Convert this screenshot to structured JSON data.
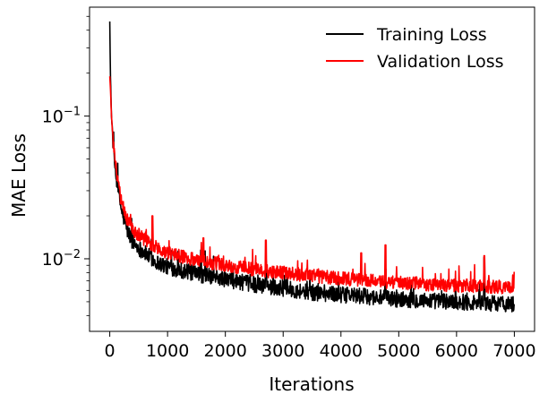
{
  "chart_data": {
    "type": "line",
    "title": "",
    "xlabel": "Iterations",
    "ylabel": "MAE Loss",
    "xlim": [
      -350,
      7350
    ],
    "ylim": [
      0.0031,
      0.58
    ],
    "yscale": "log",
    "grid": false,
    "legend_position": "top-right",
    "x_ticks": [
      0,
      1000,
      2000,
      3000,
      4000,
      5000,
      6000,
      7000
    ],
    "x_tick_labels": [
      "0",
      "1000",
      "2000",
      "3000",
      "4000",
      "5000",
      "6000",
      "7000"
    ],
    "y_major_ticks": [
      0.01,
      0.1
    ],
    "y_tick_labels": [
      {
        "value": 0.01,
        "base": "10",
        "exp": "−2"
      },
      {
        "value": 0.1,
        "base": "10",
        "exp": "−1"
      }
    ],
    "x_max": 7000,
    "series": [
      {
        "name": "Training Loss",
        "color": "#000000",
        "x": [
          0,
          10,
          30,
          60,
          100,
          150,
          200,
          300,
          400,
          600,
          800,
          1000,
          1500,
          2000,
          2500,
          3000,
          3500,
          4000,
          4500,
          5000,
          5500,
          6000,
          6500,
          7000
        ],
        "values": [
          0.46,
          0.2,
          0.1,
          0.06,
          0.04,
          0.03,
          0.022,
          0.016,
          0.013,
          0.011,
          0.0095,
          0.0088,
          0.0078,
          0.0072,
          0.0066,
          0.0062,
          0.0058,
          0.0056,
          0.0054,
          0.0052,
          0.0051,
          0.005,
          0.0049,
          0.0048
        ],
        "noise": 0.13,
        "spikes": [
          {
            "x": 6480,
            "value": 0.0102
          },
          {
            "x": 1580,
            "value": 0.0115
          },
          {
            "x": 2700,
            "value": 0.0098
          },
          {
            "x": 4770,
            "value": 0.0085
          }
        ]
      },
      {
        "name": "Validation Loss",
        "color": "#ff0000",
        "x": [
          0,
          10,
          30,
          60,
          100,
          150,
          200,
          300,
          400,
          600,
          800,
          1000,
          1500,
          2000,
          2500,
          3000,
          3500,
          4000,
          4500,
          5000,
          5500,
          6000,
          6500,
          7000
        ],
        "values": [
          0.19,
          0.16,
          0.1,
          0.065,
          0.045,
          0.033,
          0.025,
          0.019,
          0.016,
          0.0135,
          0.012,
          0.011,
          0.0098,
          0.009,
          0.0084,
          0.008,
          0.0076,
          0.0073,
          0.007,
          0.0068,
          0.0066,
          0.0065,
          0.0064,
          0.0063
        ],
        "noise": 0.11,
        "spikes": [
          {
            "x": 4770,
            "value": 0.0125
          },
          {
            "x": 1620,
            "value": 0.014
          },
          {
            "x": 2700,
            "value": 0.0135
          },
          {
            "x": 740,
            "value": 0.02
          },
          {
            "x": 4350,
            "value": 0.011
          },
          {
            "x": 6480,
            "value": 0.0105
          }
        ]
      }
    ]
  }
}
